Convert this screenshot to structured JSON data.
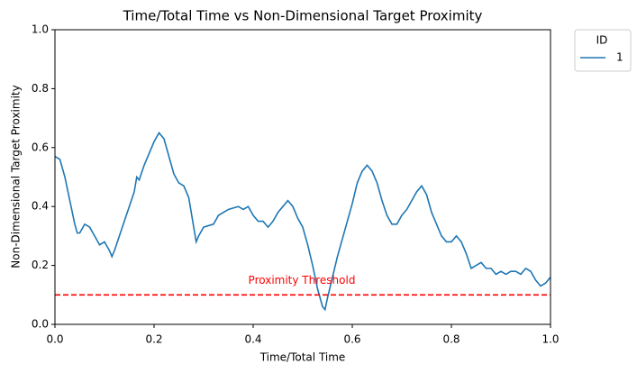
{
  "chart_data": {
    "type": "line",
    "title": "Time/Total Time vs Non-Dimensional Target Proximity",
    "xlabel": "Time/Total Time",
    "ylabel": "Non-Dimensional Target Proximity",
    "legend_title": "ID",
    "legend_position": "outside-upper-right",
    "x": [
      0,
      0.01,
      0.02,
      0.03,
      0.04,
      0.045,
      0.05,
      0.06,
      0.07,
      0.08,
      0.09,
      0.1,
      0.11,
      0.115,
      0.12,
      0.13,
      0.14,
      0.15,
      0.16,
      0.165,
      0.17,
      0.18,
      0.19,
      0.2,
      0.21,
      0.22,
      0.23,
      0.24,
      0.25,
      0.26,
      0.27,
      0.28,
      0.285,
      0.29,
      0.3,
      0.32,
      0.33,
      0.35,
      0.37,
      0.38,
      0.39,
      0.4,
      0.41,
      0.42,
      0.43,
      0.44,
      0.45,
      0.46,
      0.47,
      0.48,
      0.49,
      0.5,
      0.51,
      0.52,
      0.53,
      0.54,
      0.545,
      0.55,
      0.56,
      0.57,
      0.58,
      0.59,
      0.6,
      0.61,
      0.62,
      0.63,
      0.64,
      0.65,
      0.66,
      0.67,
      0.68,
      0.69,
      0.7,
      0.71,
      0.72,
      0.73,
      0.74,
      0.75,
      0.76,
      0.77,
      0.78,
      0.79,
      0.8,
      0.81,
      0.82,
      0.83,
      0.84,
      0.85,
      0.86,
      0.87,
      0.88,
      0.89,
      0.9,
      0.91,
      0.92,
      0.93,
      0.94,
      0.95,
      0.96,
      0.97,
      0.98,
      0.99,
      1.0
    ],
    "series": [
      {
        "name": "1",
        "color": "#1f77b4",
        "values": [
          0.57,
          0.56,
          0.5,
          0.42,
          0.34,
          0.31,
          0.31,
          0.34,
          0.33,
          0.3,
          0.27,
          0.28,
          0.25,
          0.23,
          0.25,
          0.3,
          0.35,
          0.4,
          0.45,
          0.5,
          0.49,
          0.54,
          0.58,
          0.62,
          0.65,
          0.63,
          0.57,
          0.51,
          0.48,
          0.47,
          0.43,
          0.33,
          0.28,
          0.3,
          0.33,
          0.34,
          0.37,
          0.39,
          0.4,
          0.39,
          0.4,
          0.37,
          0.35,
          0.35,
          0.33,
          0.35,
          0.38,
          0.4,
          0.42,
          0.4,
          0.36,
          0.33,
          0.27,
          0.2,
          0.12,
          0.06,
          0.05,
          0.09,
          0.16,
          0.23,
          0.29,
          0.35,
          0.41,
          0.48,
          0.52,
          0.54,
          0.52,
          0.48,
          0.42,
          0.37,
          0.34,
          0.34,
          0.37,
          0.39,
          0.42,
          0.45,
          0.47,
          0.44,
          0.38,
          0.34,
          0.3,
          0.28,
          0.28,
          0.3,
          0.28,
          0.24,
          0.19,
          0.2,
          0.21,
          0.19,
          0.19,
          0.17,
          0.18,
          0.17,
          0.18,
          0.18,
          0.17,
          0.19,
          0.18,
          0.15,
          0.13,
          0.14,
          0.16
        ]
      }
    ],
    "threshold": {
      "value": 0.1,
      "color": "#ff0000",
      "label": "Proximity Threshold"
    },
    "xlim": [
      0,
      1
    ],
    "ylim": [
      0,
      1
    ],
    "xticks": [
      {
        "value": 0,
        "label": "0.0"
      },
      {
        "value": 0.2,
        "label": "0.2"
      },
      {
        "value": 0.4,
        "label": "0.4"
      },
      {
        "value": 0.6,
        "label": "0.6"
      },
      {
        "value": 0.8,
        "label": "0.8"
      },
      {
        "value": 1,
        "label": "1.0"
      }
    ],
    "yticks": [
      {
        "value": 0,
        "label": "0.0"
      },
      {
        "value": 0.2,
        "label": "0.2"
      },
      {
        "value": 0.4,
        "label": "0.4"
      },
      {
        "value": 0.6,
        "label": "0.6"
      },
      {
        "value": 0.8,
        "label": "0.8"
      },
      {
        "value": 1,
        "label": "1.0"
      }
    ],
    "grid": false
  }
}
